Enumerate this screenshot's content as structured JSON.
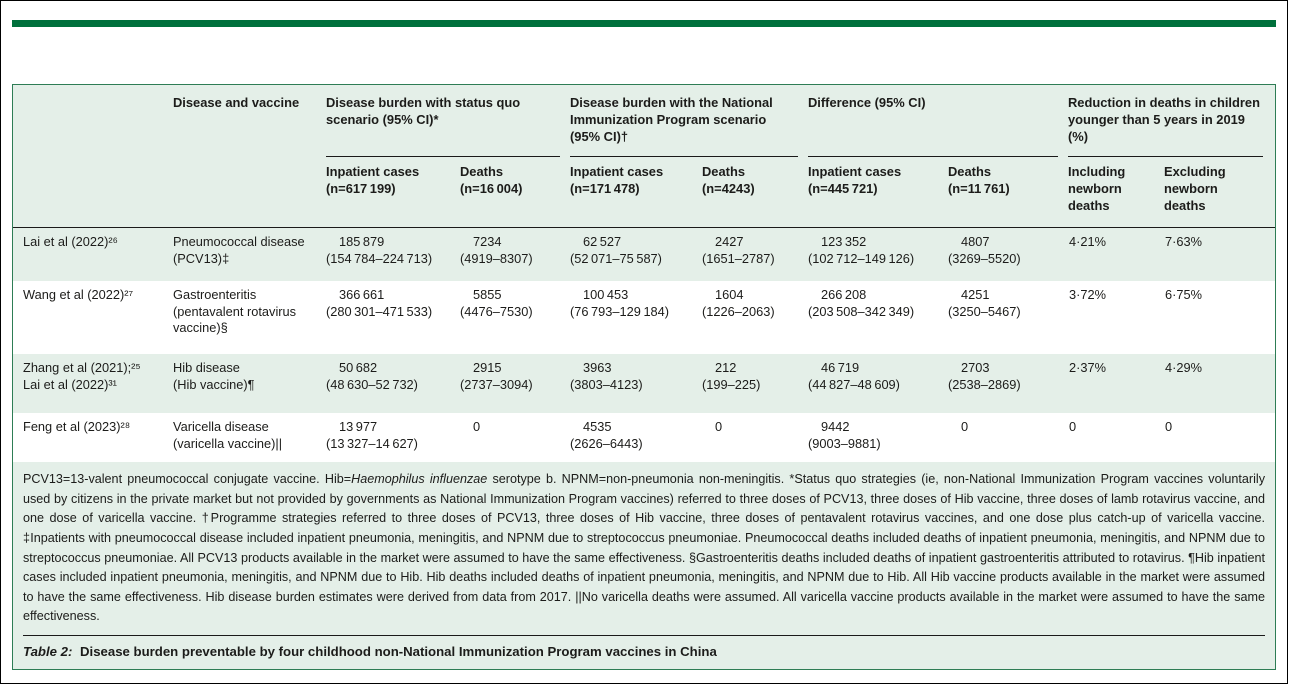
{
  "colors": {
    "brand_green": "#00703c",
    "table_border_green": "#2e7d55",
    "band_green": "#e4efe8",
    "text": "#1c1c1a"
  },
  "table": {
    "disease_col_header": "Disease and vaccine",
    "groups": [
      {
        "label": "Disease burden with status quo scenario (95% CI)*",
        "sub": [
          "Inpatient cases\n(n=617 199)",
          "Deaths\n(n=16 004)"
        ]
      },
      {
        "label": "Disease burden with the National Immunization Program scenario (95% CI)†",
        "sub": [
          "Inpatient cases\n(n=171 478)",
          "Deaths\n(n=4243)"
        ]
      },
      {
        "label": "Difference (95% CI)",
        "sub": [
          "Inpatient cases\n(n=445 721)",
          "Deaths\n(n=11 761)"
        ]
      },
      {
        "label": "Reduction in deaths in children younger than 5 years in 2019 (%)",
        "sub": [
          "Including\nnewborn\ndeaths",
          "Excluding\nnewborn\ndeaths"
        ]
      }
    ],
    "caption_label": "Table 2:",
    "caption_text": " Disease burden preventable by four childhood non-National Immunization Program vaccines in China"
  },
  "rows": [
    {
      "study": "Lai et al (2022)²⁶",
      "disease": "Pneumococcal disease\n(PCV13)‡",
      "cells": [
        {
          "v": "185 879",
          "ci": "(154 784–224 713)"
        },
        {
          "v": "7234",
          "ci": "(4919–8307)"
        },
        {
          "v": "62 527",
          "ci": "(52 071–75 587)"
        },
        {
          "v": "2427",
          "ci": "(1651–2787)"
        },
        {
          "v": "123 352",
          "ci": "(102 712–149 126)"
        },
        {
          "v": "4807",
          "ci": "(3269–5520)"
        },
        {
          "v": "4·21%"
        },
        {
          "v": "7·63%"
        }
      ]
    },
    {
      "study": "Wang et al (2022)²⁷",
      "disease": "Gastroenteritis\n(pentavalent rotavirus\nvaccine)§",
      "cells": [
        {
          "v": "366 661",
          "ci": "(280 301–471 533)"
        },
        {
          "v": "5855",
          "ci": "(4476–7530)"
        },
        {
          "v": "100 453",
          "ci": "(76 793–129 184)"
        },
        {
          "v": "1604",
          "ci": "(1226–2063)"
        },
        {
          "v": "266 208",
          "ci": "(203 508–342 349)"
        },
        {
          "v": "4251",
          "ci": "(3250–5467)"
        },
        {
          "v": "3·72%"
        },
        {
          "v": "6·75%"
        }
      ]
    },
    {
      "study": "Zhang et al (2021);²⁵\nLai et al (2022)³¹",
      "disease": "Hib disease\n(Hib vaccine)¶",
      "cells": [
        {
          "v": "50 682",
          "ci": "(48 630–52 732)"
        },
        {
          "v": "2915",
          "ci": "(2737–3094)"
        },
        {
          "v": "3963",
          "ci": "(3803–4123)"
        },
        {
          "v": "212",
          "ci": "(199–225)"
        },
        {
          "v": "46 719",
          "ci": "(44 827–48 609)"
        },
        {
          "v": "2703",
          "ci": "(2538–2869)"
        },
        {
          "v": "2·37%"
        },
        {
          "v": "4·29%"
        }
      ]
    },
    {
      "study": "Feng et al (2023)²⁸",
      "disease": "Varicella disease\n(varicella vaccine)||",
      "cells": [
        {
          "v": "13 977",
          "ci": "(13 327–14 627)"
        },
        {
          "v": "0"
        },
        {
          "v": "4535",
          "ci": "(2626–6443)"
        },
        {
          "v": "0"
        },
        {
          "v": "9442",
          "ci": "(9003–9881)"
        },
        {
          "v": "0"
        },
        {
          "v": "0"
        },
        {
          "v": "0"
        }
      ]
    }
  ],
  "footnote": {
    "part1": "PCV13=13-valent pneumococcal conjugate vaccine. Hib=",
    "italic": "Haemophilus influenzae",
    "part2": " serotype b. NPNM=non-pneumonia non-meningitis. *Status quo strategies (ie, non-National Immunization Program vaccines voluntarily used by citizens in the private market but not provided by governments as National Immunization Program vaccines) referred to three doses of PCV13, three doses of Hib vaccine, three doses of lamb rotavirus vaccine, and one dose of varicella vaccine. †Programme strategies referred to three doses of PCV13, three doses of Hib vaccine, three doses of pentavalent rotavirus vaccines, and one dose plus catch-up of varicella vaccine. ‡Inpatients with pneumococcal disease included inpatient pneumonia, meningitis, and NPNM due to streptococcus pneumoniae. Pneumococcal deaths included deaths of inpatient pneumonia, meningitis, and NPNM due to streptococcus pneumoniae. All PCV13 products available in the market were assumed to have the same effectiveness. §Gastroenteritis deaths included deaths of inpatient gastroenteritis attributed to rotavirus. ¶Hib inpatient cases included inpatient pneumonia, meningitis, and NPNM due to Hib. Hib deaths included deaths of inpatient pneumonia, meningitis, and NPNM due to Hib. All Hib vaccine products available in the market were assumed to have the same effectiveness. Hib disease burden estimates were derived from data from 2017. ||No varicella deaths were assumed. All varicella vaccine products available in the market were assumed to have the same effectiveness."
  }
}
